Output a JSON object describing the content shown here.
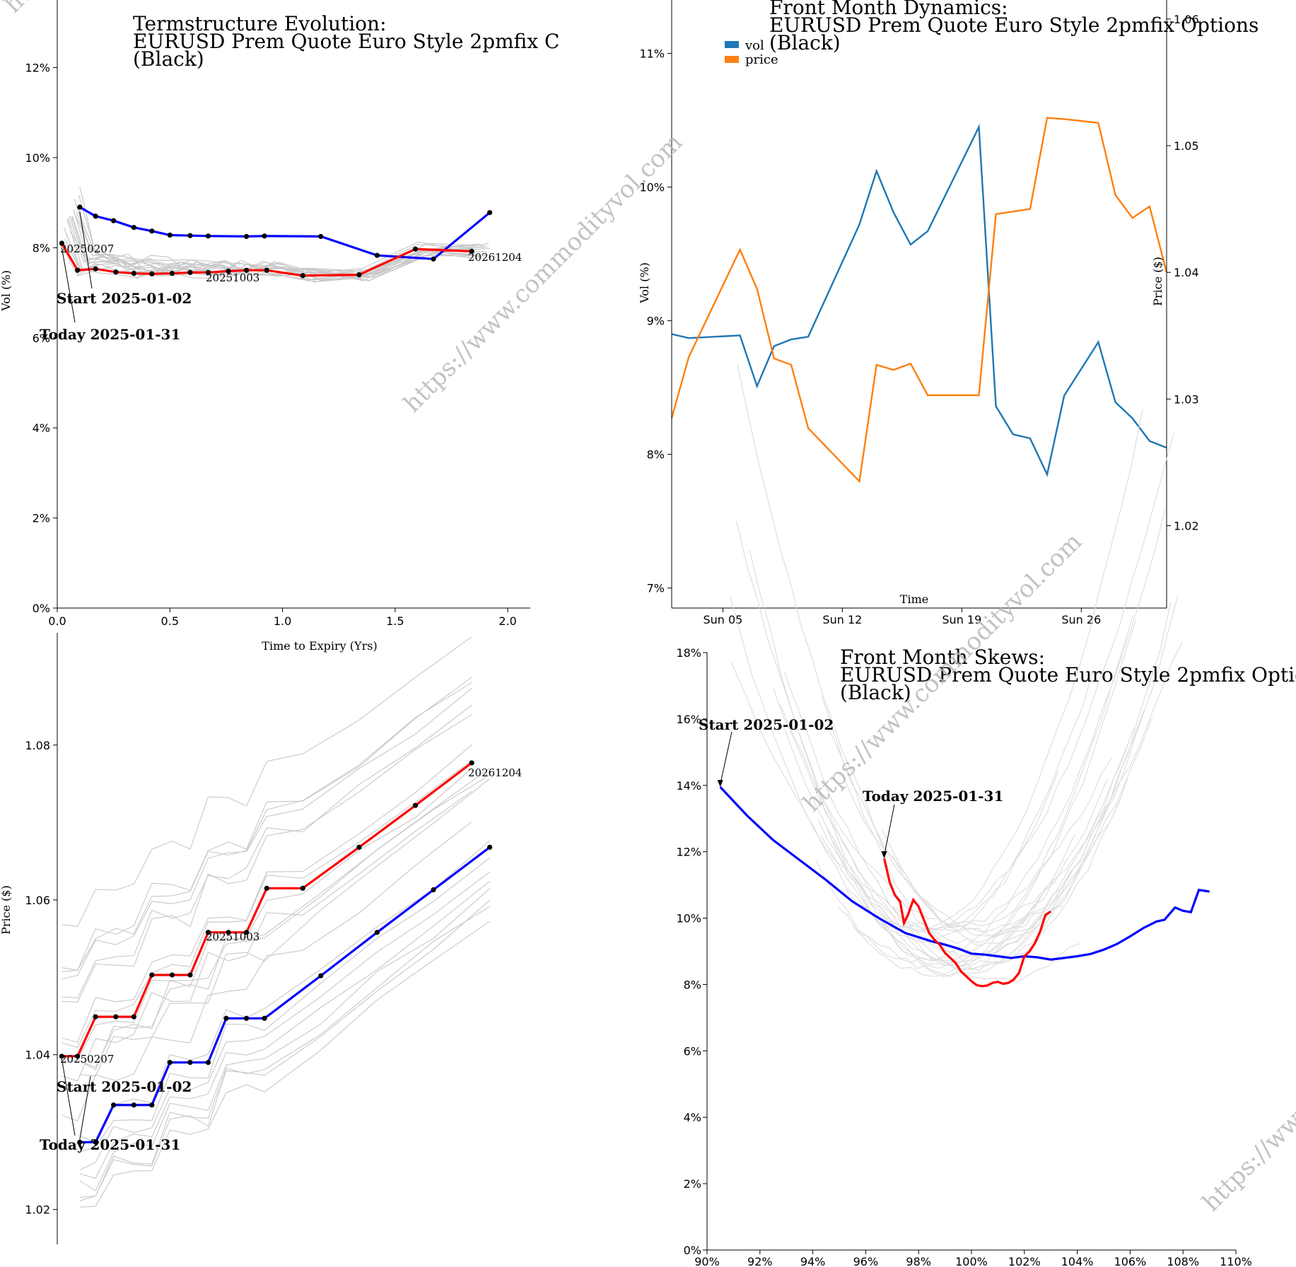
{
  "watermark": "https://www.commodityvol.com",
  "colors": {
    "red": "#ff0000",
    "blue": "#0000ff",
    "grey": "#c8c8c8",
    "vol": "#1f77b4",
    "price": "#ff7f0e"
  },
  "chart_data": [
    {
      "id": "termstructure",
      "type": "line",
      "title_lines": [
        "Termstructure Evolution:",
        "EURUSD Prem Quote Euro Style 2pmfix C",
        "(Black)"
      ],
      "xlabel": "Time to Expiry (Yrs)",
      "ylabel": "Vol (%)",
      "xlim": [
        0,
        2.1
      ],
      "ylim": [
        0,
        13.5
      ],
      "xticks": [
        0.0,
        0.5,
        1.0,
        1.5,
        2.0
      ],
      "xtick_labels": [
        "0.0",
        "0.5",
        "1.0",
        "1.5",
        "2.0"
      ],
      "yticks": [
        0,
        2,
        4,
        6,
        8,
        10,
        12
      ],
      "ytick_labels": [
        "0%",
        "2%",
        "4%",
        "6%",
        "8%",
        "10%",
        "12%"
      ],
      "grid": false,
      "series": [
        {
          "role": "start",
          "x": [
            0.1,
            0.17,
            0.25,
            0.34,
            0.42,
            0.5,
            0.59,
            0.67,
            0.84,
            0.92,
            1.17,
            1.42,
            1.67,
            1.92
          ],
          "y": [
            8.9,
            8.7,
            8.6,
            8.45,
            8.37,
            8.28,
            8.27,
            8.26,
            8.25,
            8.26,
            8.25,
            7.83,
            7.75,
            8.78
          ]
        },
        {
          "role": "today",
          "x": [
            0.02,
            0.09,
            0.17,
            0.26,
            0.34,
            0.42,
            0.51,
            0.59,
            0.67,
            0.76,
            0.84,
            0.93,
            1.09,
            1.34,
            1.59,
            1.84
          ],
          "y": [
            8.1,
            7.5,
            7.53,
            7.46,
            7.43,
            7.42,
            7.43,
            7.45,
            7.45,
            7.48,
            7.5,
            7.5,
            7.38,
            7.4,
            7.97,
            7.92
          ]
        }
      ],
      "point_labels": [
        {
          "text": "20250207",
          "x": 0.02,
          "y": 8.1
        },
        {
          "text": "20251003",
          "x": 0.67,
          "y": 7.45
        },
        {
          "text": "20261204",
          "x": 1.84,
          "y": 7.92
        }
      ],
      "annotations": [
        {
          "text": "Start 2025-01-02",
          "target_x": 0.1,
          "target_y": 8.9
        },
        {
          "text": "Today 2025-01-31",
          "target_x": 0.02,
          "target_y": 8.1
        }
      ]
    },
    {
      "id": "dynamics",
      "type": "line",
      "title_lines": [
        "Front Month Dynamics:",
        "EURUSD Prem Quote Euro Style 2pmfix Options",
        "(Black)"
      ],
      "xlabel": "Time",
      "ylabel": "Vol (%)",
      "y2label": "Price ($)",
      "xlim": [
        0,
        29
      ],
      "ylim": [
        6.85,
        11.4
      ],
      "y2lim": [
        1.0135,
        1.0615
      ],
      "xticks": [
        3,
        10,
        17,
        24
      ],
      "xtick_labels": [
        "Sun 05",
        "Sun 12",
        "Sun 19",
        "Sun 26"
      ],
      "yticks": [
        7,
        8,
        9,
        10,
        11
      ],
      "ytick_labels": [
        "7%",
        "8%",
        "9%",
        "10%",
        "11%"
      ],
      "y2ticks": [
        1.02,
        1.03,
        1.04,
        1.05,
        1.06
      ],
      "y2tick_labels": [
        "1.02",
        "1.03",
        "1.04",
        "1.05",
        "1.06"
      ],
      "legend": "top-left",
      "grid": false,
      "series": [
        {
          "name": "vol",
          "axis": "left",
          "x": [
            0,
            1,
            4,
            5,
            6,
            7,
            8,
            11,
            12,
            13,
            14,
            15,
            18,
            19,
            20,
            21,
            22,
            23,
            25,
            26,
            27,
            28,
            29
          ],
          "y": [
            8.9,
            8.87,
            8.89,
            8.51,
            8.81,
            8.86,
            8.88,
            9.72,
            10.12,
            9.81,
            9.57,
            9.67,
            10.45,
            8.36,
            8.15,
            8.12,
            7.85,
            8.44,
            8.84,
            8.39,
            8.27,
            8.1,
            8.05
          ]
        },
        {
          "name": "price",
          "axis": "right",
          "x": [
            0,
            1,
            4,
            5,
            6,
            7,
            8,
            11,
            12,
            13,
            14,
            15,
            18,
            19,
            20,
            21,
            22,
            23,
            25,
            26,
            27,
            28,
            29
          ],
          "y": [
            1.0285,
            1.0333,
            1.0418,
            1.0387,
            1.0332,
            1.0327,
            1.0277,
            1.0235,
            1.0327,
            1.0323,
            1.0328,
            1.0303,
            1.0303,
            1.0446,
            1.0448,
            1.045,
            1.0522,
            1.0521,
            1.0518,
            1.0461,
            1.0443,
            1.0452,
            1.04
          ]
        }
      ]
    },
    {
      "id": "forward_curve",
      "type": "line",
      "title_lines": [],
      "xlabel": "",
      "ylabel": "Price ($)",
      "xlim": [
        0,
        2.1
      ],
      "ylim": [
        1.0155,
        1.0945
      ],
      "yticks": [
        1.02,
        1.04,
        1.06,
        1.08
      ],
      "ytick_labels": [
        "1.02",
        "1.04",
        "1.06",
        "1.08"
      ],
      "grid": false,
      "series": [
        {
          "role": "start",
          "x": [
            0.1,
            0.17,
            0.25,
            0.34,
            0.42,
            0.5,
            0.59,
            0.67,
            0.75,
            0.84,
            0.92,
            1.17,
            1.42,
            1.67,
            1.92
          ],
          "y": [
            1.0287,
            1.0287,
            1.0335,
            1.0335,
            1.0335,
            1.039,
            1.039,
            1.039,
            1.0447,
            1.0447,
            1.0447,
            1.0502,
            1.0558,
            1.0613,
            1.0668
          ]
        },
        {
          "role": "today",
          "x": [
            0.02,
            0.09,
            0.17,
            0.26,
            0.34,
            0.42,
            0.51,
            0.59,
            0.67,
            0.76,
            0.84,
            0.93,
            1.09,
            1.34,
            1.59,
            1.84
          ],
          "y": [
            1.0398,
            1.0398,
            1.0449,
            1.0449,
            1.0449,
            1.0503,
            1.0503,
            1.0503,
            1.0558,
            1.0558,
            1.0558,
            1.0615,
            1.0615,
            1.0668,
            1.0722,
            1.0777
          ]
        }
      ],
      "point_labels": [
        {
          "text": "20250207",
          "x": 0.02,
          "y": 1.0398
        },
        {
          "text": "20251003",
          "x": 0.67,
          "y": 1.0558
        },
        {
          "text": "20261204",
          "x": 1.84,
          "y": 1.0777
        }
      ],
      "annotations": [
        {
          "text": "Start 2025-01-02",
          "target_x": 0.1,
          "target_y": 1.0287
        },
        {
          "text": "Today 2025-01-31",
          "target_x": 0.02,
          "target_y": 1.0398
        }
      ]
    },
    {
      "id": "skews",
      "type": "line",
      "title_lines": [
        "Front Month Skews:",
        "EURUSD Prem Quote Euro Style 2pmfix Optic",
        "(Black)"
      ],
      "xlabel": "",
      "ylabel": "",
      "xlim": [
        90,
        110
      ],
      "ylim": [
        0,
        18
      ],
      "xticks": [
        90,
        92,
        94,
        96,
        98,
        100,
        102,
        104,
        106,
        108,
        110
      ],
      "xtick_labels": [
        "90%",
        "92%",
        "94%",
        "96%",
        "98%",
        "100%",
        "102%",
        "104%",
        "106%",
        "108%",
        "110%"
      ],
      "yticks": [
        0,
        2,
        4,
        6,
        8,
        10,
        12,
        14,
        16,
        18
      ],
      "ytick_labels": [
        "0%",
        "2%",
        "4%",
        "6%",
        "8%",
        "10%",
        "12%",
        "14%",
        "16%",
        "18%"
      ],
      "grid": false,
      "series": [
        {
          "role": "start",
          "x": [
            90.5,
            91.5,
            92.5,
            93.5,
            94.5,
            95.5,
            96.5,
            97.5,
            98.5,
            99.0,
            99.5,
            100.0,
            100.5,
            101.0,
            101.5,
            102.0,
            102.5,
            103.0,
            103.5,
            104.0,
            104.5,
            105.0,
            105.5,
            106.0,
            106.5,
            107.0,
            107.3,
            107.7,
            108.0,
            108.3,
            108.6,
            109.0
          ],
          "y": [
            13.95,
            13.1,
            12.35,
            11.75,
            11.15,
            10.5,
            10.0,
            9.55,
            9.3,
            9.2,
            9.08,
            8.93,
            8.9,
            8.85,
            8.8,
            8.85,
            8.82,
            8.75,
            8.8,
            8.85,
            8.92,
            9.05,
            9.22,
            9.45,
            9.7,
            9.9,
            9.95,
            10.32,
            10.22,
            10.18,
            10.85,
            10.8
          ]
        },
        {
          "role": "today",
          "x": [
            96.7,
            96.9,
            97.1,
            97.3,
            97.45,
            97.6,
            97.8,
            98.0,
            98.2,
            98.4,
            98.6,
            98.8,
            99.0,
            99.2,
            99.4,
            99.6,
            99.8,
            100.0,
            100.2,
            100.4,
            100.6,
            100.8,
            101.0,
            101.2,
            101.4,
            101.6,
            101.8,
            102.0,
            102.2,
            102.4,
            102.6,
            102.8,
            103.0
          ],
          "y": [
            11.8,
            11.1,
            10.7,
            10.5,
            9.85,
            10.1,
            10.55,
            10.35,
            9.95,
            9.55,
            9.35,
            9.2,
            8.95,
            8.8,
            8.65,
            8.4,
            8.25,
            8.1,
            7.98,
            7.95,
            7.97,
            8.05,
            8.08,
            8.02,
            8.05,
            8.15,
            8.35,
            8.85,
            9.0,
            9.25,
            9.6,
            10.1,
            10.2
          ]
        }
      ],
      "annotations": [
        {
          "text": "Start 2025-01-02",
          "target_x": 90.5,
          "target_y": 13.95
        },
        {
          "text": "Today 2025-01-31",
          "target_x": 96.7,
          "target_y": 11.8
        }
      ]
    }
  ]
}
